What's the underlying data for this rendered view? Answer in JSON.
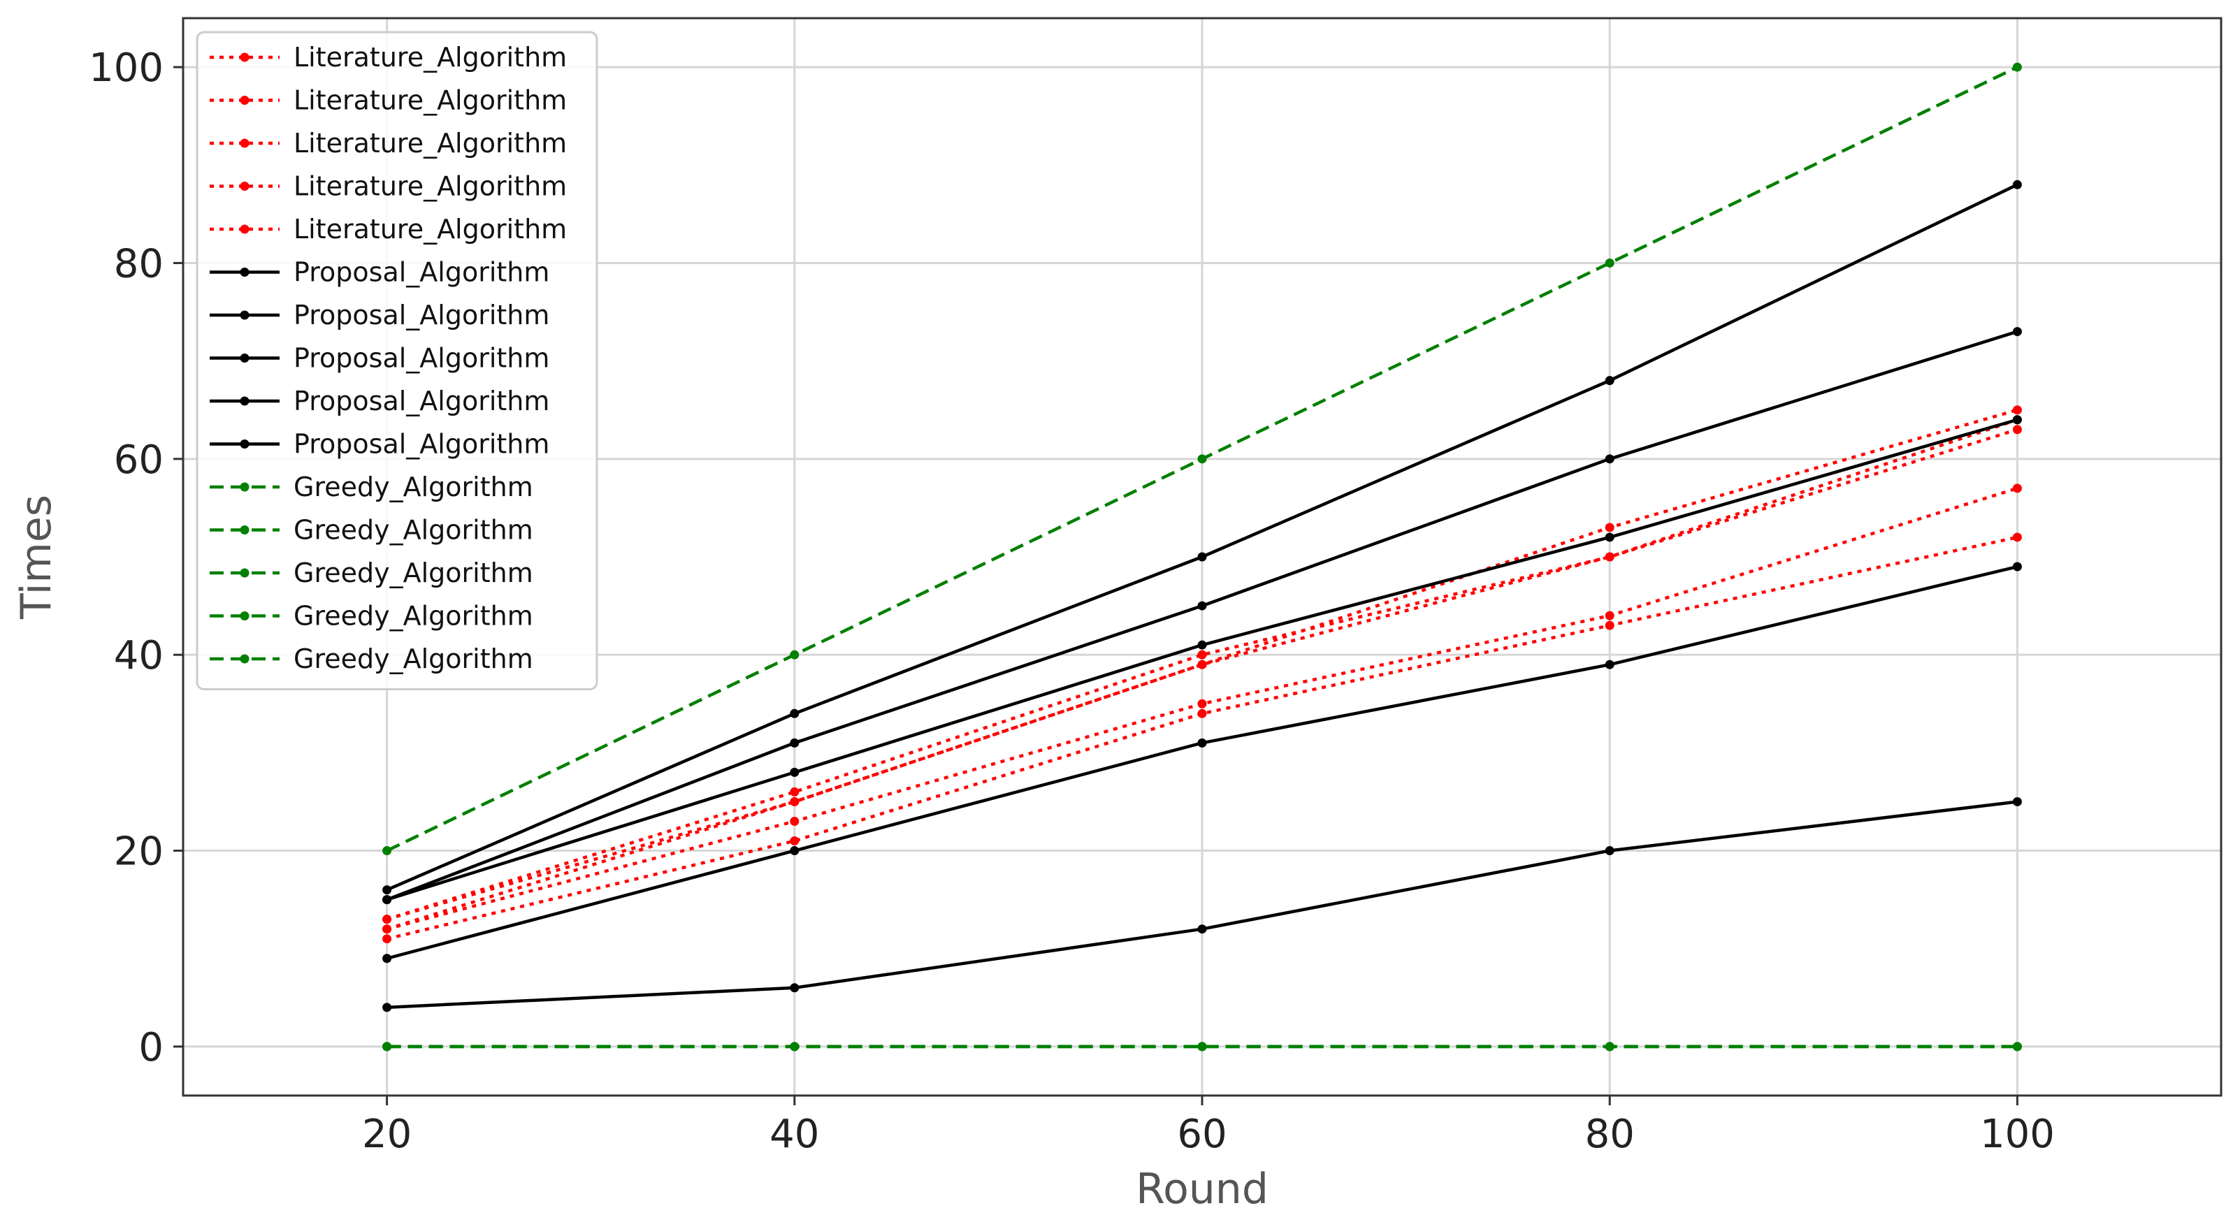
{
  "chart_data": {
    "type": "line",
    "title": "",
    "xlabel": "Round",
    "ylabel": "Times",
    "x": [
      20,
      40,
      60,
      80,
      100
    ],
    "xlim": [
      10,
      110
    ],
    "ylim": [
      -5,
      105
    ],
    "xticks": [
      20,
      40,
      60,
      80,
      100
    ],
    "yticks": [
      0,
      20,
      40,
      60,
      80,
      100
    ],
    "grid": true,
    "legend_position": "top-left",
    "colors": {
      "literature": "#ff0000",
      "proposal": "#000000",
      "greedy": "#008000"
    },
    "series": [
      {
        "name": "Literature_Algorithm",
        "group": "literature",
        "style": "dotted",
        "values": [
          11,
          21,
          34,
          43,
          52
        ]
      },
      {
        "name": "Literature_Algorithm",
        "group": "literature",
        "style": "dotted",
        "values": [
          12,
          23,
          35,
          44,
          57
        ]
      },
      {
        "name": "Literature_Algorithm",
        "group": "literature",
        "style": "dotted",
        "values": [
          12,
          25,
          39,
          50,
          63
        ]
      },
      {
        "name": "Literature_Algorithm",
        "group": "literature",
        "style": "dotted",
        "values": [
          13,
          25,
          39,
          53,
          65
        ]
      },
      {
        "name": "Literature_Algorithm",
        "group": "literature",
        "style": "dotted",
        "values": [
          13,
          26,
          40,
          50,
          64
        ]
      },
      {
        "name": "Proposal_Algorithm",
        "group": "proposal",
        "style": "solid",
        "values": [
          4,
          6,
          12,
          20,
          25
        ]
      },
      {
        "name": "Proposal_Algorithm",
        "group": "proposal",
        "style": "solid",
        "values": [
          9,
          20,
          31,
          39,
          49
        ]
      },
      {
        "name": "Proposal_Algorithm",
        "group": "proposal",
        "style": "solid",
        "values": [
          15,
          28,
          41,
          52,
          64
        ]
      },
      {
        "name": "Proposal_Algorithm",
        "group": "proposal",
        "style": "solid",
        "values": [
          15,
          31,
          45,
          60,
          73
        ]
      },
      {
        "name": "Proposal_Algorithm",
        "group": "proposal",
        "style": "solid",
        "values": [
          16,
          34,
          50,
          68,
          88
        ]
      },
      {
        "name": "Greedy_Algorithm",
        "group": "greedy",
        "style": "dashed",
        "values": [
          0,
          0,
          0,
          0,
          0
        ]
      },
      {
        "name": "Greedy_Algorithm",
        "group": "greedy",
        "style": "dashed",
        "values": [
          0,
          0,
          0,
          0,
          0
        ]
      },
      {
        "name": "Greedy_Algorithm",
        "group": "greedy",
        "style": "dashed",
        "values": [
          0,
          0,
          0,
          0,
          0
        ]
      },
      {
        "name": "Greedy_Algorithm",
        "group": "greedy",
        "style": "dashed",
        "values": [
          0,
          0,
          0,
          0,
          0
        ]
      },
      {
        "name": "Greedy_Algorithm",
        "group": "greedy",
        "style": "dashed",
        "values": [
          20,
          40,
          60,
          80,
          100
        ]
      }
    ]
  }
}
